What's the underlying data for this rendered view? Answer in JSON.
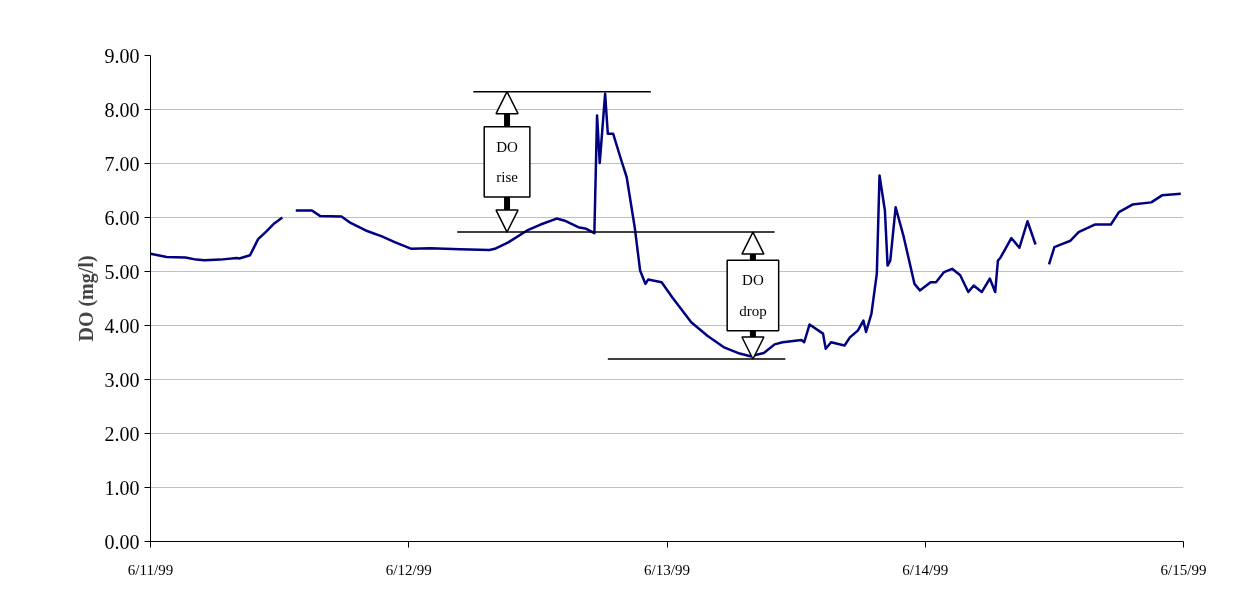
{
  "chart_data": {
    "type": "line",
    "ylabel": "DO (mg/l)",
    "grid": "y",
    "xlim": [
      "1999-06-11",
      "1999-06-15"
    ],
    "xticks": [
      {
        "value": "1999-06-11",
        "label": "6/11/99"
      },
      {
        "value": "1999-06-12",
        "label": "6/12/99"
      },
      {
        "value": "1999-06-13",
        "label": "6/13/99"
      },
      {
        "value": "1999-06-14",
        "label": "6/14/99"
      },
      {
        "value": "1999-06-15",
        "label": "6/15/99"
      }
    ],
    "ylim": [
      0,
      9
    ],
    "yticks": [
      {
        "value": 0,
        "label": "0.00"
      },
      {
        "value": 1,
        "label": "1.00"
      },
      {
        "value": 2,
        "label": "2.00"
      },
      {
        "value": 3,
        "label": "3.00"
      },
      {
        "value": 4,
        "label": "4.00"
      },
      {
        "value": 5,
        "label": "5.00"
      },
      {
        "value": 6,
        "label": "6.00"
      },
      {
        "value": 7,
        "label": "7.00"
      },
      {
        "value": 8,
        "label": "8.00"
      },
      {
        "value": 9,
        "label": "9.00"
      }
    ],
    "series": [
      {
        "color": "#000080",
        "x": [
          "1999-06-11T00:00",
          "1999-06-11T01:30",
          "1999-06-11T03:15",
          "1999-06-11T04:15",
          "1999-06-11T05:00",
          "1999-06-11T06:30",
          "1999-06-11T08:00",
          "1999-06-11T08:15",
          "1999-06-11T09:15",
          "1999-06-11T09:30",
          "1999-06-11T10:00",
          "1999-06-11T10:45",
          "1999-06-11T11:30",
          "1999-06-11T12:15",
          "1999-06-11T12:45",
          "1999-06-11T13:30",
          "1999-06-11T15:00",
          "1999-06-11T15:45",
          "1999-06-11T17:45",
          "1999-06-11T18:30",
          "1999-06-11T20:00",
          "1999-06-11T21:30",
          "1999-06-11T22:45",
          "1999-06-12T00:15",
          "1999-06-12T02:00",
          "1999-06-12T04:45",
          "1999-06-12T07:30",
          "1999-06-12T08:00",
          "1999-06-12T09:15",
          "1999-06-12T11:00",
          "1999-06-12T12:15",
          "1999-06-12T13:45",
          "1999-06-12T14:30",
          "1999-06-12T15:45",
          "1999-06-12T16:30",
          "1999-06-12T17:15",
          "1999-06-12T17:30",
          "1999-06-12T17:45",
          "1999-06-12T18:15",
          "1999-06-12T18:30",
          "1999-06-12T19:00",
          "1999-06-12T19:45",
          "1999-06-12T20:15",
          "1999-06-12T21:00",
          "1999-06-12T21:30",
          "1999-06-12T22:00",
          "1999-06-12T22:15",
          "1999-06-12T23:30",
          "1999-06-13T00:30",
          "1999-06-13T02:15",
          "1999-06-13T03:45",
          "1999-06-13T05:15",
          "1999-06-13T06:45",
          "1999-06-13T07:45",
          "1999-06-13T09:00",
          "1999-06-13T10:00",
          "1999-06-13T10:45",
          "1999-06-13T12:30",
          "1999-06-13T12:45",
          "1999-06-13T13:15",
          "1999-06-13T14:30",
          "1999-06-13T14:45",
          "1999-06-13T15:15",
          "1999-06-13T16:30",
          "1999-06-13T17:00",
          "1999-06-13T17:45",
          "1999-06-13T18:15",
          "1999-06-13T18:30",
          "1999-06-13T19:00",
          "1999-06-13T19:30",
          "1999-06-13T19:45",
          "1999-06-13T20:15",
          "1999-06-13T20:30",
          "1999-06-13T20:45",
          "1999-06-13T21:15",
          "1999-06-13T22:00",
          "1999-06-13T23:00",
          "1999-06-13T23:30",
          "1999-06-14T00:30",
          "1999-06-14T01:00",
          "1999-06-14T01:45",
          "1999-06-14T02:30",
          "1999-06-14T03:15",
          "1999-06-14T04:00",
          "1999-06-14T04:30",
          "1999-06-14T05:15",
          "1999-06-14T06:00",
          "1999-06-14T06:30",
          "1999-06-14T06:45",
          "1999-06-14T07:00",
          "1999-06-14T08:00",
          "1999-06-14T08:45",
          "1999-06-14T09:30",
          "1999-06-14T10:15",
          "1999-06-14T10:45",
          "1999-06-14T11:30",
          "1999-06-14T12:00",
          "1999-06-14T12:45",
          "1999-06-14T13:30",
          "1999-06-14T14:15",
          "1999-06-14T15:45",
          "1999-06-14T17:15",
          "1999-06-14T18:00",
          "1999-06-14T19:15",
          "1999-06-14T21:00",
          "1999-06-14T22:00",
          "1999-06-14T23:45"
        ],
        "values": [
          5.33,
          5.27,
          5.26,
          5.22,
          5.21,
          5.22,
          5.25,
          5.24,
          5.3,
          5.4,
          5.6,
          5.74,
          5.89,
          6.0,
          null,
          6.13,
          6.13,
          6.03,
          6.02,
          5.91,
          5.76,
          5.65,
          5.54,
          5.42,
          5.43,
          5.41,
          5.4,
          5.42,
          5.54,
          5.76,
          5.87,
          5.98,
          5.94,
          5.82,
          5.79,
          5.71,
          7.89,
          7.01,
          8.29,
          7.55,
          7.55,
          7.06,
          6.75,
          5.82,
          5.02,
          4.77,
          4.85,
          4.8,
          4.52,
          4.06,
          3.81,
          3.6,
          3.48,
          3.43,
          3.49,
          3.65,
          3.69,
          3.73,
          3.69,
          4.02,
          3.85,
          3.57,
          3.69,
          3.63,
          3.78,
          3.91,
          4.09,
          3.88,
          4.22,
          4.96,
          6.78,
          6.13,
          5.11,
          5.2,
          6.19,
          5.64,
          4.77,
          4.65,
          4.8,
          4.8,
          4.99,
          5.05,
          4.93,
          4.62,
          4.74,
          4.62,
          4.87,
          4.62,
          5.2,
          5.26,
          5.62,
          5.44,
          5.93,
          5.5,
          null,
          5.13,
          5.45,
          5.51,
          5.57,
          5.73,
          5.87,
          5.87,
          6.1,
          6.24,
          6.28,
          6.41,
          6.44
        ]
      },
      {
        "type": "line",
        "color": "#000000",
        "x": [
          "1999-06-12T06:00",
          "1999-06-12T22:30"
        ],
        "values": [
          8.33,
          8.33
        ]
      },
      {
        "type": "line",
        "color": "#000000",
        "x": [
          "1999-06-12T04:30",
          "1999-06-13T10:00"
        ],
        "values": [
          5.73,
          5.73
        ]
      },
      {
        "type": "line",
        "color": "#000000",
        "x": [
          "1999-06-12T18:30",
          "1999-06-13T11:00"
        ],
        "values": [
          3.38,
          3.38
        ]
      }
    ],
    "annotations": [
      "DO rise",
      "DO drop"
    ]
  }
}
